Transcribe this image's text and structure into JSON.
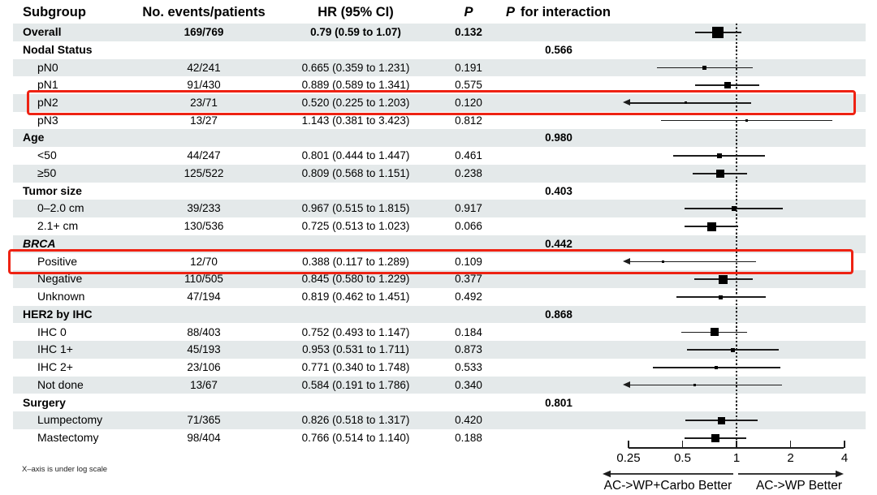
{
  "header": {
    "subgroup": "Subgroup",
    "events": "No. events/patients",
    "hr": "HR (95% CI)",
    "p": "P",
    "p_interaction_p": "P",
    "p_interaction_rest": "for interaction"
  },
  "footnote": "X–axis is under log scale",
  "axis_labels": {
    "left": "AC->WP+Carbo Better",
    "right": "AC->WP Better"
  },
  "colors": {
    "stripe": "#e4e9ea",
    "highlight": "#ee2213",
    "ink": "#1c1c1c"
  },
  "chart_data": {
    "type": "forest",
    "x_scale": "log",
    "x_ticks": [
      0.25,
      0.5,
      1,
      2,
      4
    ],
    "x_range": [
      0.25,
      4
    ],
    "reference_line": 1,
    "rows": [
      {
        "label": "Overall",
        "level": "overall",
        "events": "169/769",
        "hr_text": "0.79 (0.59 to 1.07)",
        "p": "0.132",
        "p_int": "",
        "hr": 0.79,
        "lo": 0.59,
        "hi": 1.07,
        "marker": 14,
        "highlight": false
      },
      {
        "label": "Nodal Status",
        "level": "group",
        "p_int": "0.566"
      },
      {
        "label": "pN0",
        "level": "item",
        "events": "42/241",
        "hr_text": "0.665 (0.359 to 1.231)",
        "p": "0.191",
        "hr": 0.665,
        "lo": 0.359,
        "hi": 1.231,
        "marker": 5
      },
      {
        "label": "pN1",
        "level": "item",
        "events": "91/430",
        "hr_text": "0.889 (0.589 to 1.341)",
        "p": "0.575",
        "hr": 0.889,
        "lo": 0.589,
        "hi": 1.341,
        "marker": 8
      },
      {
        "label": "pN2",
        "level": "item",
        "events": "23/71",
        "hr_text": "0.520 (0.225 to 1.203)",
        "p": "0.120",
        "hr": 0.52,
        "lo": 0.225,
        "hi": 1.203,
        "marker": 3,
        "highlight": true
      },
      {
        "label": "pN3",
        "level": "item",
        "events": "13/27",
        "hr_text": "1.143 (0.381 to 3.423)",
        "p": "0.812",
        "hr": 1.143,
        "lo": 0.381,
        "hi": 3.423,
        "marker": 3
      },
      {
        "label": "Age",
        "level": "group",
        "p_int": "0.980"
      },
      {
        "label": "<50",
        "level": "item",
        "events": "44/247",
        "hr_text": "0.801 (0.444 to 1.447)",
        "p": "0.461",
        "hr": 0.801,
        "lo": 0.444,
        "hi": 1.447,
        "marker": 6
      },
      {
        "label": "≥50",
        "level": "item",
        "events": "125/522",
        "hr_text": "0.809 (0.568 to 1.151)",
        "p": "0.238",
        "hr": 0.809,
        "lo": 0.568,
        "hi": 1.151,
        "marker": 10
      },
      {
        "label": "Tumor size",
        "level": "group",
        "p_int": "0.403"
      },
      {
        "label": "0–2.0 cm",
        "level": "item",
        "events": "39/233",
        "hr_text": "0.967 (0.515 to 1.815)",
        "p": "0.917",
        "hr": 0.967,
        "lo": 0.515,
        "hi": 1.815,
        "marker": 6
      },
      {
        "label": "2.1+ cm",
        "level": "item",
        "events": "130/536",
        "hr_text": "0.725 (0.513 to 1.023)",
        "p": "0.066",
        "hr": 0.725,
        "lo": 0.513,
        "hi": 1.023,
        "marker": 11
      },
      {
        "label": "BRCA",
        "level": "group",
        "italic": true,
        "p_int": "0.442"
      },
      {
        "label": "Positive",
        "level": "item",
        "events": "12/70",
        "hr_text": "0.388 (0.117 to 1.289)",
        "p": "0.109",
        "hr": 0.388,
        "lo": 0.117,
        "hi": 1.289,
        "marker": 3,
        "highlight": true
      },
      {
        "label": "Negative",
        "level": "item",
        "events": "110/505",
        "hr_text": "0.845 (0.580 to 1.229)",
        "p": "0.377",
        "hr": 0.845,
        "lo": 0.58,
        "hi": 1.229,
        "marker": 11
      },
      {
        "label": "Unknown",
        "level": "item",
        "events": "47/194",
        "hr_text": "0.819 (0.462 to 1.451)",
        "p": "0.492",
        "hr": 0.819,
        "lo": 0.462,
        "hi": 1.451,
        "marker": 5
      },
      {
        "label": "HER2 by IHC",
        "level": "group",
        "p_int": "0.868"
      },
      {
        "label": "IHC 0",
        "level": "item",
        "events": "88/403",
        "hr_text": "0.752 (0.493 to 1.147)",
        "p": "0.184",
        "hr": 0.752,
        "lo": 0.493,
        "hi": 1.147,
        "marker": 10
      },
      {
        "label": "IHC 1+",
        "level": "item",
        "events": "45/193",
        "hr_text": "0.953 (0.531 to 1.711)",
        "p": "0.873",
        "hr": 0.953,
        "lo": 0.531,
        "hi": 1.711,
        "marker": 5
      },
      {
        "label": "IHC 2+",
        "level": "item",
        "events": "23/106",
        "hr_text": "0.771 (0.340 to 1.748)",
        "p": "0.533",
        "hr": 0.771,
        "lo": 0.34,
        "hi": 1.748,
        "marker": 4
      },
      {
        "label": "Not done",
        "level": "item",
        "events": "13/67",
        "hr_text": "0.584 (0.191 to 1.786)",
        "p": "0.340",
        "hr": 0.584,
        "lo": 0.191,
        "hi": 1.786,
        "marker": 3
      },
      {
        "label": "Surgery",
        "level": "group",
        "p_int": "0.801"
      },
      {
        "label": "Lumpectomy",
        "level": "item",
        "events": "71/365",
        "hr_text": "0.826 (0.518 to 1.317)",
        "p": "0.420",
        "hr": 0.826,
        "lo": 0.518,
        "hi": 1.317,
        "marker": 9
      },
      {
        "label": "Mastectomy",
        "level": "item",
        "events": "98/404",
        "hr_text": "0.766 (0.514 to 1.140)",
        "p": "0.188",
        "hr": 0.766,
        "lo": 0.514,
        "hi": 1.14,
        "marker": 10
      }
    ]
  }
}
